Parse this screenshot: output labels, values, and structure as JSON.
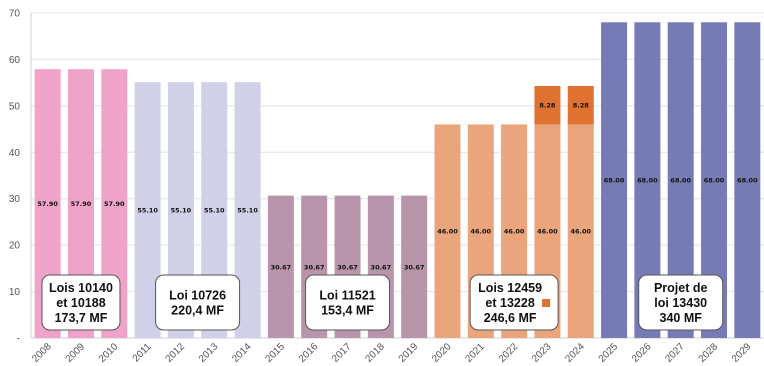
{
  "chart_data": {
    "type": "bar",
    "stacked": true,
    "categories": [
      "2008",
      "2009",
      "2010",
      "2011",
      "2012",
      "2013",
      "2014",
      "2015",
      "2016",
      "2017",
      "2018",
      "2019",
      "2020",
      "2021",
      "2022",
      "2023",
      "2024",
      "2025",
      "2026",
      "2027",
      "2028",
      "2029"
    ],
    "ylim": [
      0,
      70
    ],
    "yticks": [
      "-",
      "10",
      "20",
      "30",
      "40",
      "50",
      "60",
      "70"
    ],
    "grid": true,
    "series": [
      {
        "values": [
          57.9,
          57.9,
          57.9,
          55.1,
          55.1,
          55.1,
          55.1,
          30.67,
          30.67,
          30.67,
          30.67,
          30.67,
          46,
          46,
          46,
          46,
          46,
          68,
          68,
          68,
          68,
          68
        ],
        "labels": [
          "57.90",
          "57.90",
          "57.90",
          "55.10",
          "55.10",
          "55.10",
          "55.10",
          "30.67",
          "30.67",
          "30.67",
          "30.67",
          "30.67",
          "46.00",
          "46.00",
          "46.00",
          "46.00",
          "46.00",
          "68.00",
          "68.00",
          "68.00",
          "68.00",
          "68.00"
        ],
        "colors": [
          "#f0a3c8",
          "#f0a3c8",
          "#f0a3c8",
          "#d0d1e8",
          "#d0d1e8",
          "#d0d1e8",
          "#d0d1e8",
          "#b895ab",
          "#b895ab",
          "#b895ab",
          "#b895ab",
          "#b895ab",
          "#eba57d",
          "#eba57d",
          "#eba57d",
          "#eba57d",
          "#eba57d",
          "#767bb5",
          "#767bb5",
          "#767bb5",
          "#767bb5",
          "#767bb5"
        ]
      },
      {
        "values": [
          null,
          null,
          null,
          null,
          null,
          null,
          null,
          null,
          null,
          null,
          null,
          null,
          null,
          null,
          null,
          8.28,
          8.28,
          null,
          null,
          null,
          null,
          null
        ],
        "labels": [
          "",
          "",
          "",
          "",
          "",
          "",
          "",
          "",
          "",
          "",
          "",
          "",
          "",
          "",
          "",
          "8.28",
          "8.28",
          "",
          "",
          "",
          "",
          ""
        ],
        "color": "#df7230"
      }
    ],
    "annotations": [
      {
        "lines": [
          "Lois 10140",
          "et 10188",
          "173,7 MF"
        ],
        "years": [
          "2008",
          "2010"
        ]
      },
      {
        "lines": [
          "Loi 10726",
          "220,4 MF"
        ],
        "years": [
          "2011",
          "2014"
        ]
      },
      {
        "lines": [
          "Loi 11521",
          "153,4 MF"
        ],
        "years": [
          "2015",
          "2019"
        ]
      },
      {
        "lines": [
          "Lois 12459",
          "et 13228",
          "246,6 MF"
        ],
        "years": [
          "2020",
          "2024"
        ],
        "marker_color": "#df7230"
      },
      {
        "lines": [
          "Projet de",
          "loi 13430",
          "340 MF"
        ],
        "years": [
          "2025",
          "2029"
        ]
      }
    ]
  }
}
